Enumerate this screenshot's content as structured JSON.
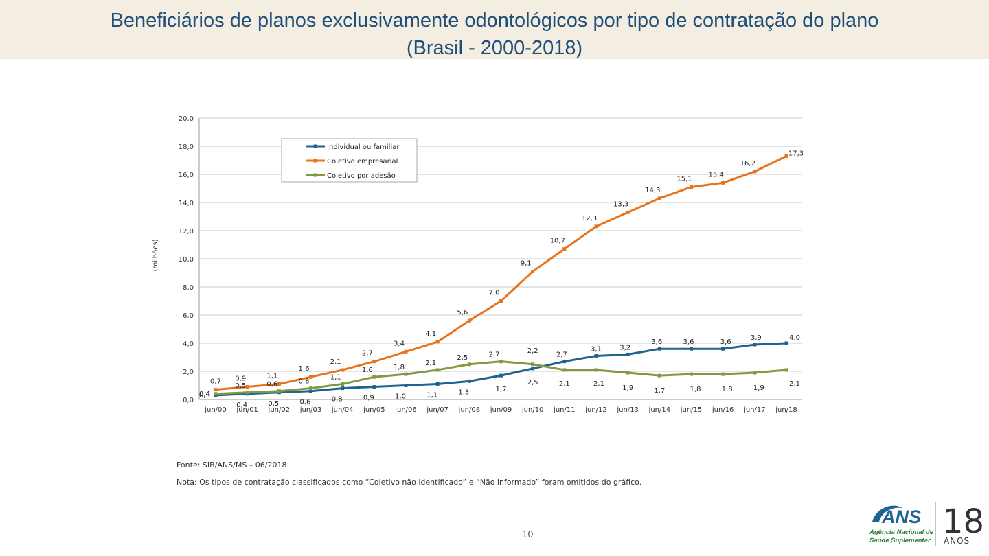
{
  "slide": {
    "title_line1": "Beneficiários de planos exclusivamente odontológicos por tipo de contratação do plano",
    "title_line2": "(Brasil - 2000-2018)",
    "source": "Fonte: SIB/ANS/MS – 06/2018",
    "note": "Nota: Os tipos de contratação classificados como “Coletivo não identificado” e “Não informado” foram omitidos do gráfico.",
    "page_number": "10"
  },
  "logo": {
    "brand": "ANS",
    "line1": "Agência Nacional de",
    "line2": "Saúde Suplementar",
    "years_number": "18",
    "years_word": "ANOS"
  },
  "colors": {
    "title": "#1f4e79",
    "header_bg": "#f4ede1",
    "individual": "#1f6391",
    "empresarial": "#e8731d",
    "adesao": "#7f9a41"
  },
  "chart_data": {
    "type": "line",
    "ylabel": "(milhões)",
    "ylim": [
      0,
      20
    ],
    "yticks": [
      "0,0",
      "2,0",
      "4,0",
      "6,0",
      "8,0",
      "10,0",
      "12,0",
      "14,0",
      "16,0",
      "18,0",
      "20,0"
    ],
    "grid": true,
    "legend_position": "top-left",
    "categories": [
      "jun/00",
      "jun/01",
      "jun/02",
      "jun/03",
      "jun/04",
      "jun/05",
      "jun/06",
      "jun/07",
      "jun/08",
      "jun/09",
      "jun/10",
      "jun/11",
      "jun/12",
      "jun/13",
      "jun/14",
      "jun/15",
      "jun/16",
      "jun/17",
      "jun/18"
    ],
    "series": [
      {
        "name": "Individual ou familiar",
        "color": "#1f6391",
        "values": [
          0.3,
          0.4,
          0.5,
          0.6,
          0.8,
          0.9,
          1.0,
          1.1,
          1.3,
          1.7,
          2.2,
          2.7,
          3.1,
          3.2,
          3.6,
          3.6,
          3.6,
          3.9,
          4.0
        ],
        "labels": [
          "0,3",
          "0,4",
          "0,5",
          "0,6",
          "0,8",
          "0,9",
          "1,0",
          "1,1",
          "1,3",
          "1,7",
          "2,2",
          "2,7",
          "3,1",
          "3,2",
          "3,6",
          "3,6",
          "3,6",
          "3,9",
          "4,0"
        ]
      },
      {
        "name": "Coletivo empresarial",
        "color": "#e8731d",
        "values": [
          0.7,
          0.9,
          1.1,
          1.6,
          2.1,
          2.7,
          3.4,
          4.1,
          5.6,
          7.0,
          9.1,
          10.7,
          12.3,
          13.3,
          14.3,
          15.1,
          15.4,
          16.2,
          17.3
        ],
        "labels": [
          "0,7",
          "0,9",
          "1,1",
          "1,6",
          "2,1",
          "2,7",
          "3,4",
          "4,1",
          "5,6",
          "7,0",
          "9,1",
          "10,7",
          "12,3",
          "13,3",
          "14,3",
          "15,1",
          "15,4",
          "16,2",
          "17,3"
        ]
      },
      {
        "name": "Coletivo por adesão",
        "color": "#7f9a41",
        "values": [
          0.4,
          0.5,
          0.6,
          0.8,
          1.1,
          1.6,
          1.8,
          2.1,
          2.5,
          2.7,
          2.5,
          2.1,
          2.1,
          1.9,
          1.7,
          1.8,
          1.8,
          1.9,
          2.1
        ],
        "labels": [
          "0,4",
          "0,5",
          "0,6",
          "0,8",
          "1,1",
          "1,6",
          "1,8",
          "2,1",
          "2,5",
          "2,7",
          "2,5",
          "2,1",
          "2,1",
          "1,9",
          "1,7",
          "1,8",
          "1,8",
          "1,9",
          "2,1"
        ]
      }
    ]
  }
}
